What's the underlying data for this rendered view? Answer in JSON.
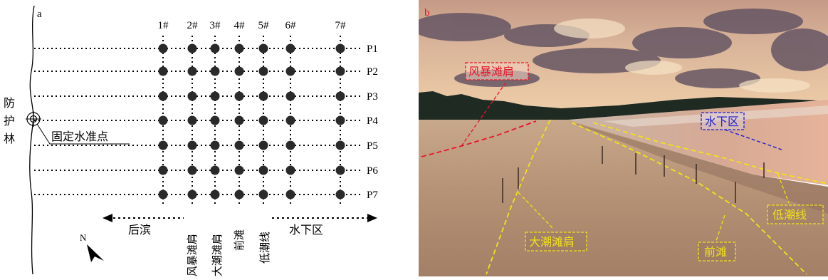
{
  "panel_a": {
    "label": "a",
    "wells": [
      "1#",
      "2#",
      "3#",
      "4#",
      "5#",
      "6#",
      "7#"
    ],
    "profiles": [
      "P1",
      "P2",
      "P3",
      "P4",
      "P5",
      "P6",
      "P7"
    ],
    "forest_label": [
      "防",
      "护",
      "林"
    ],
    "benchmark_label": "固定水准点",
    "zones_horizontal": {
      "backshore": "后滨",
      "underwater": "水下区"
    },
    "zones_vertical": [
      "风暴滩肩",
      "大潮滩肩",
      "前滩",
      "低潮线"
    ],
    "north_label": "N"
  },
  "panel_b": {
    "label": "b",
    "annotations": {
      "storm_berm": "风暴滩肩",
      "underwater": "水下区",
      "spring_tide_berm": "大潮滩肩",
      "low_tide_line": "低潮线",
      "foreshore": "前滩"
    },
    "colors": {
      "storm": "#e8152a",
      "underwater": "#1f1fd0",
      "yellow": "#f2e11a"
    }
  }
}
